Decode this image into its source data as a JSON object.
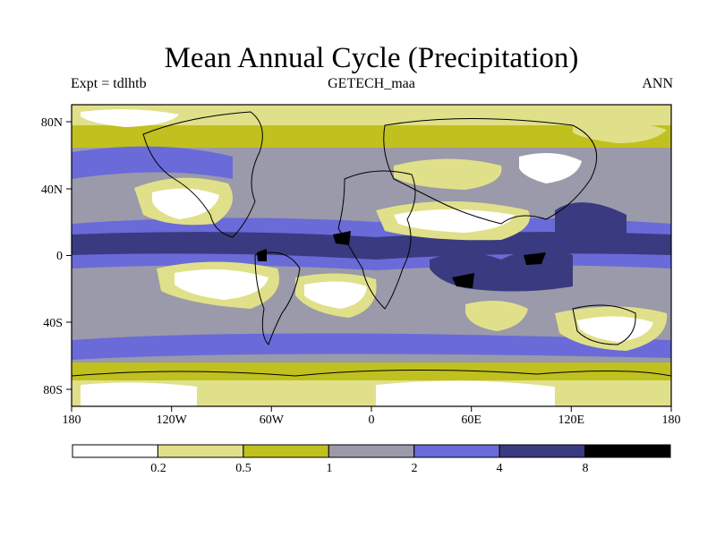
{
  "title": "Mean Annual Cycle (Precipitation)",
  "experiment": "Expt = tdlhtb",
  "dataset": "GETECH_maa",
  "period": "ANN",
  "x_axis": {
    "ticks": [
      "180",
      "120W",
      "60W",
      "0",
      "60E",
      "120E",
      "180"
    ]
  },
  "y_axis": {
    "ticks": [
      "80N",
      "40N",
      "0",
      "40S",
      "80S"
    ]
  },
  "legend": {
    "boundaries": [
      "0.2",
      "0.5",
      "1",
      "2",
      "4",
      "8"
    ],
    "colors": [
      "#ffffff",
      "#e0e08a",
      "#c0c01f",
      "#9a9aaa",
      "#6a6ad8",
      "#3a3a80",
      "#000000"
    ]
  },
  "chart_data": {
    "type": "heatmap",
    "title": "Mean Annual Cycle (Precipitation)",
    "variable": "Precipitation",
    "xlim": [
      -180,
      180
    ],
    "ylim": [
      -90,
      90
    ],
    "contour_levels": [
      0.2,
      0.5,
      1,
      2,
      4,
      8
    ]
  }
}
